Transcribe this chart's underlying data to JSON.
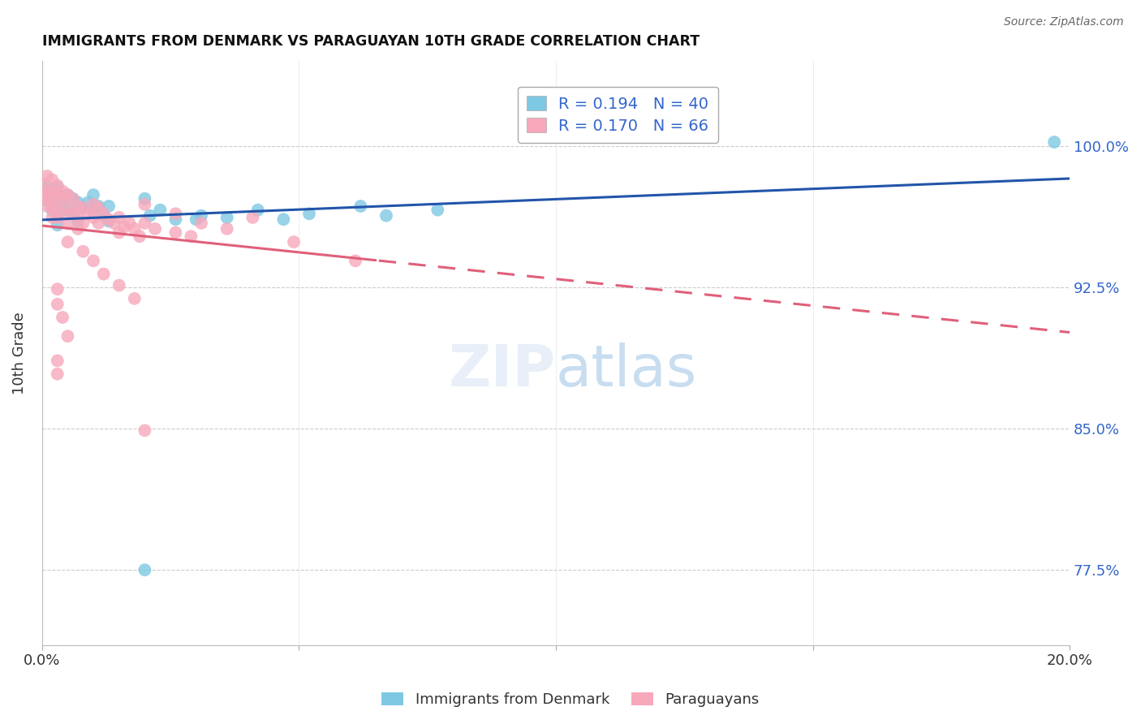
{
  "title": "IMMIGRANTS FROM DENMARK VS PARAGUAYAN 10TH GRADE CORRELATION CHART",
  "source": "Source: ZipAtlas.com",
  "ylabel": "10th Grade",
  "ytick_labels": [
    "77.5%",
    "85.0%",
    "92.5%",
    "100.0%"
  ],
  "ytick_values": [
    0.775,
    0.85,
    0.925,
    1.0
  ],
  "xlim": [
    0.0,
    0.2
  ],
  "ylim": [
    0.735,
    1.045
  ],
  "denmark_color": "#7ec8e3",
  "paraguay_color": "#f7a8bb",
  "denmark_line_color": "#2255aa",
  "paraguay_line_color": "#e0607a",
  "denmark_R": 0.194,
  "denmark_N": 40,
  "paraguay_R": 0.17,
  "paraguay_N": 66,
  "denmark_points": [
    [
      0.0,
      0.975
    ],
    [
      0.001,
      0.978
    ],
    [
      0.001,
      0.971
    ],
    [
      0.002,
      0.976
    ],
    [
      0.002,
      0.97
    ],
    [
      0.002,
      0.966
    ],
    [
      0.003,
      0.978
    ],
    [
      0.003,
      0.963
    ],
    [
      0.003,
      0.958
    ],
    [
      0.004,
      0.972
    ],
    [
      0.004,
      0.966
    ],
    [
      0.005,
      0.974
    ],
    [
      0.005,
      0.966
    ],
    [
      0.006,
      0.972
    ],
    [
      0.006,
      0.964
    ],
    [
      0.007,
      0.97
    ],
    [
      0.007,
      0.96
    ],
    [
      0.008,
      0.967
    ],
    [
      0.009,
      0.97
    ],
    [
      0.01,
      0.966
    ],
    [
      0.01,
      0.974
    ],
    [
      0.011,
      0.968
    ],
    [
      0.012,
      0.963
    ],
    [
      0.013,
      0.968
    ],
    [
      0.013,
      0.96
    ],
    [
      0.02,
      0.972
    ],
    [
      0.021,
      0.963
    ],
    [
      0.023,
      0.966
    ],
    [
      0.026,
      0.961
    ],
    [
      0.03,
      0.961
    ],
    [
      0.031,
      0.963
    ],
    [
      0.036,
      0.962
    ],
    [
      0.042,
      0.966
    ],
    [
      0.047,
      0.961
    ],
    [
      0.052,
      0.964
    ],
    [
      0.062,
      0.968
    ],
    [
      0.067,
      0.963
    ],
    [
      0.077,
      0.966
    ],
    [
      0.02,
      0.775
    ],
    [
      0.197,
      1.002
    ]
  ],
  "paraguay_points": [
    [
      0.0,
      0.98
    ],
    [
      0.0,
      0.974
    ],
    [
      0.001,
      0.984
    ],
    [
      0.001,
      0.976
    ],
    [
      0.001,
      0.972
    ],
    [
      0.001,
      0.968
    ],
    [
      0.002,
      0.982
    ],
    [
      0.002,
      0.976
    ],
    [
      0.002,
      0.972
    ],
    [
      0.002,
      0.967
    ],
    [
      0.002,
      0.962
    ],
    [
      0.003,
      0.979
    ],
    [
      0.003,
      0.974
    ],
    [
      0.003,
      0.968
    ],
    [
      0.003,
      0.962
    ],
    [
      0.004,
      0.976
    ],
    [
      0.004,
      0.972
    ],
    [
      0.004,
      0.964
    ],
    [
      0.005,
      0.974
    ],
    [
      0.005,
      0.967
    ],
    [
      0.005,
      0.959
    ],
    [
      0.006,
      0.972
    ],
    [
      0.006,
      0.964
    ],
    [
      0.007,
      0.968
    ],
    [
      0.007,
      0.962
    ],
    [
      0.007,
      0.956
    ],
    [
      0.008,
      0.967
    ],
    [
      0.008,
      0.959
    ],
    [
      0.009,
      0.964
    ],
    [
      0.01,
      0.969
    ],
    [
      0.01,
      0.962
    ],
    [
      0.011,
      0.967
    ],
    [
      0.011,
      0.959
    ],
    [
      0.012,
      0.964
    ],
    [
      0.013,
      0.961
    ],
    [
      0.014,
      0.959
    ],
    [
      0.015,
      0.962
    ],
    [
      0.015,
      0.954
    ],
    [
      0.016,
      0.957
    ],
    [
      0.017,
      0.959
    ],
    [
      0.018,
      0.956
    ],
    [
      0.019,
      0.952
    ],
    [
      0.02,
      0.969
    ],
    [
      0.02,
      0.959
    ],
    [
      0.022,
      0.956
    ],
    [
      0.026,
      0.964
    ],
    [
      0.026,
      0.954
    ],
    [
      0.029,
      0.952
    ],
    [
      0.031,
      0.959
    ],
    [
      0.036,
      0.956
    ],
    [
      0.041,
      0.962
    ],
    [
      0.049,
      0.949
    ],
    [
      0.061,
      0.939
    ],
    [
      0.005,
      0.949
    ],
    [
      0.008,
      0.944
    ],
    [
      0.01,
      0.939
    ],
    [
      0.012,
      0.932
    ],
    [
      0.015,
      0.926
    ],
    [
      0.018,
      0.919
    ],
    [
      0.02,
      0.849
    ],
    [
      0.003,
      0.924
    ],
    [
      0.003,
      0.916
    ],
    [
      0.004,
      0.909
    ],
    [
      0.005,
      0.899
    ],
    [
      0.003,
      0.886
    ],
    [
      0.003,
      0.879
    ]
  ]
}
